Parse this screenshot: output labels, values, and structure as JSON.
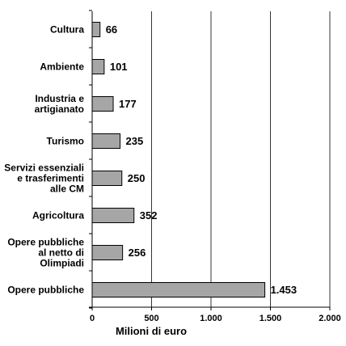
{
  "chart_data": {
    "type": "bar",
    "orientation": "horizontal",
    "categories": [
      "Cultura",
      "Ambiente",
      "Industria e artigianato",
      "Turismo",
      "Servizi essenziali e trasferimenti alle CM",
      "Agricoltura",
      "Opere pubbliche al netto di Olimpiadi",
      "Opere pubbliche"
    ],
    "category_lines": [
      [
        "Cultura"
      ],
      [
        "Ambiente"
      ],
      [
        "Industria e",
        "artigianato"
      ],
      [
        "Turismo"
      ],
      [
        "Servizi essenziali",
        "e trasferimenti",
        "alle CM"
      ],
      [
        "Agricoltura"
      ],
      [
        "Opere pubbliche",
        "al netto di",
        "Olimpiadi"
      ],
      [
        "Opere pubbliche"
      ]
    ],
    "values": [
      66,
      101,
      177,
      235,
      250,
      352,
      256,
      1453
    ],
    "value_labels": [
      "66",
      "101",
      "177",
      "235",
      "250",
      "352",
      "256",
      "1.453"
    ],
    "xlabel": "Milioni di euro",
    "xlim": [
      0,
      2000
    ],
    "xticks": [
      0,
      500,
      1000,
      1500,
      2000
    ],
    "xtick_labels": [
      "0",
      "500",
      "1.000",
      "1.500",
      "2.000"
    ],
    "grid": true,
    "bar_color": "#a6a6a6",
    "legend": "none"
  }
}
